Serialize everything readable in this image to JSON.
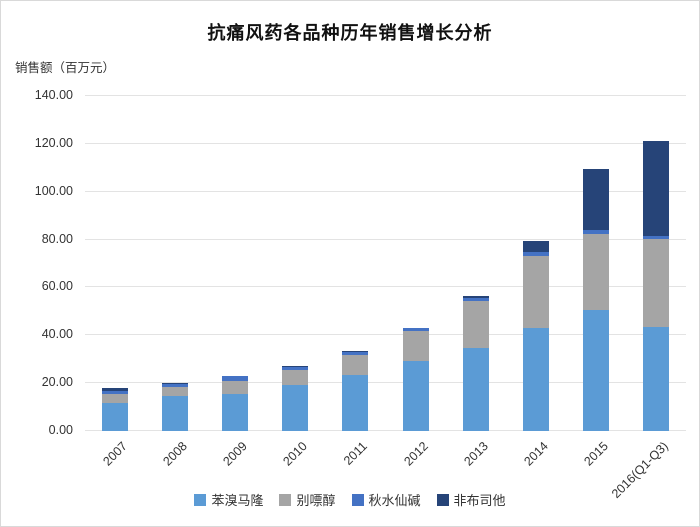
{
  "chart_data": {
    "type": "bar",
    "stacked": true,
    "title": "抗痛风药各品种历年销售增长分析",
    "y_axis_label": "销售额（百万元）",
    "categories": [
      "2007",
      "2008",
      "2009",
      "2010",
      "2011",
      "2012",
      "2013",
      "2014",
      "2015",
      "2016(Q1-Q3)"
    ],
    "series": [
      {
        "name": "苯溴马隆",
        "color": "#5B9BD5",
        "values": [
          11.7,
          14.6,
          15.4,
          19.2,
          23.6,
          29.2,
          34.7,
          43.1,
          50.7,
          43.3
        ]
      },
      {
        "name": "别嘌醇",
        "color": "#A5A5A5",
        "values": [
          3.8,
          3.9,
          5.7,
          6.5,
          8.3,
          12.5,
          19.7,
          29.9,
          31.5,
          36.8
        ]
      },
      {
        "name": "秋水仙碱",
        "color": "#4472C4",
        "values": [
          1.4,
          1.2,
          1.7,
          1.2,
          1.1,
          1.2,
          1.2,
          1.8,
          1.8,
          1.4
        ]
      },
      {
        "name": "非布司他",
        "color": "#264478",
        "values": [
          1.0,
          0.3,
          0.2,
          0.4,
          0.3,
          0.3,
          1.0,
          4.6,
          25.6,
          39.6
        ]
      }
    ],
    "ylim": [
      0,
      140
    ],
    "y_tick_step": 20,
    "y_tick_labels": [
      "0.00",
      "20.00",
      "40.00",
      "60.00",
      "80.00",
      "100.00",
      "120.00",
      "140.00"
    ],
    "grid": "horizontal",
    "gridline_color": "#e3e3e3",
    "legend_position": "bottom"
  }
}
